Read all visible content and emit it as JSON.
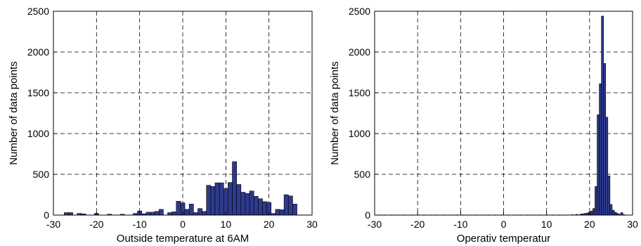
{
  "chart_data": [
    {
      "type": "bar",
      "title": "",
      "xlabel": "Outside temperature at 6AM",
      "ylabel": "Number of data points",
      "xlim": [
        -30,
        30
      ],
      "ylim": [
        0,
        2500
      ],
      "xticks": [
        -30,
        -20,
        -10,
        0,
        10,
        20,
        30
      ],
      "yticks": [
        0,
        500,
        1000,
        1500,
        2000,
        2500
      ],
      "grid": true,
      "bin_width": 1,
      "x": [
        -27,
        -26,
        -24,
        -23,
        -20,
        -17,
        -14,
        -11,
        -10,
        -9,
        -8,
        -7,
        -6,
        -5,
        -3,
        -2,
        -1,
        0,
        1,
        2,
        3,
        4,
        5,
        6,
        7,
        8,
        9,
        10,
        11,
        12,
        13,
        14,
        15,
        16,
        17,
        18,
        19,
        20,
        21,
        22,
        23,
        24,
        25,
        26
      ],
      "values": [
        30,
        30,
        20,
        15,
        20,
        10,
        10,
        20,
        50,
        15,
        35,
        35,
        45,
        70,
        30,
        40,
        170,
        150,
        70,
        135,
        30,
        80,
        45,
        365,
        350,
        395,
        395,
        325,
        400,
        655,
        375,
        280,
        265,
        295,
        230,
        200,
        165,
        155,
        20,
        70,
        65,
        250,
        235,
        135
      ]
    },
    {
      "type": "bar",
      "title": "",
      "xlabel": "Operativ temperatur",
      "ylabel": "Number of data points",
      "xlim": [
        -30,
        30
      ],
      "ylim": [
        0,
        2500
      ],
      "xticks": [
        -30,
        -20,
        -10,
        0,
        10,
        20,
        30
      ],
      "yticks": [
        0,
        500,
        1000,
        1500,
        2000,
        2500
      ],
      "grid": true,
      "bin_width": 0.5,
      "x": [
        -29,
        -27.5,
        -26,
        -24.5,
        -23,
        -21.5,
        -20,
        -18.5,
        -17,
        -15.5,
        -14,
        -12.5,
        -11,
        -9.5,
        -8,
        -6.5,
        -5,
        -3.5,
        -2,
        -0.5,
        1,
        2.5,
        4,
        5.5,
        7,
        8.5,
        10,
        11.5,
        13,
        14.5,
        16,
        17,
        18,
        18.5,
        19,
        19.5,
        20,
        20.5,
        21,
        21.5,
        22,
        22.5,
        23,
        23.5,
        24,
        24.5,
        25,
        25.5,
        26,
        26.5,
        27,
        27.5,
        28
      ],
      "values": [
        2,
        2,
        2,
        2,
        2,
        2,
        2,
        2,
        2,
        2,
        2,
        2,
        2,
        2,
        2,
        2,
        2,
        2,
        2,
        2,
        2,
        2,
        2,
        2,
        2,
        2,
        2,
        2,
        2,
        2,
        4,
        8,
        12,
        15,
        20,
        25,
        35,
        50,
        80,
        350,
        1230,
        1610,
        2440,
        1860,
        1200,
        480,
        130,
        60,
        35,
        20,
        10,
        30,
        5
      ]
    }
  ]
}
